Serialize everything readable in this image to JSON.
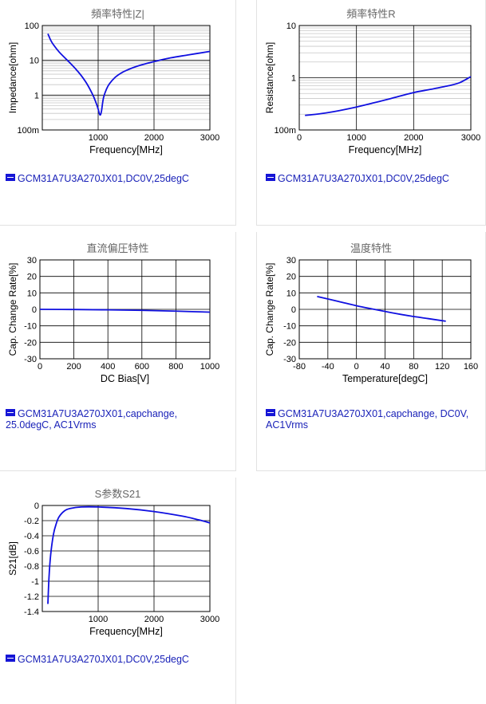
{
  "chart_data": [
    {
      "id": "impedance",
      "type": "line",
      "title": "頻率特性|Z|",
      "xlabel": "Frequency[MHz]",
      "ylabel": "Impedance[ohm]",
      "xlim": [
        0,
        3000
      ],
      "ylim": [
        0.1,
        100
      ],
      "yscale": "log",
      "grid": true,
      "xticks": [
        "1000",
        "2000",
        "3000"
      ],
      "yticks": [
        "100m",
        "1",
        "10",
        "100"
      ],
      "legend": "GCM31A7U3A270JX01,DC0V,25degC",
      "series": [
        {
          "name": "GCM31A7U3A270JX01,DC0V,25degC",
          "x": [
            100,
            150,
            200,
            300,
            400,
            500,
            600,
            700,
            800,
            900,
            950,
            1000,
            1020,
            1040,
            1060,
            1080,
            1100,
            1150,
            1200,
            1300,
            1400,
            1500,
            1700,
            2000,
            2300,
            2600,
            3000
          ],
          "y": [
            58,
            38,
            28,
            17.5,
            12,
            8.3,
            5.6,
            3.6,
            2.1,
            1.05,
            0.68,
            0.4,
            0.3,
            0.27,
            0.35,
            0.6,
            0.9,
            1.5,
            2.1,
            3.2,
            4.2,
            5.1,
            6.8,
            9.2,
            11.8,
            14.2,
            18
          ]
        }
      ]
    },
    {
      "id": "resistance",
      "type": "line",
      "title": "頻率特性R",
      "xlabel": "Frequency[MHz]",
      "ylabel": "Resistance[ohm]",
      "xlim": [
        0,
        3000
      ],
      "ylim": [
        0.1,
        10
      ],
      "yscale": "log",
      "grid": true,
      "xticks": [
        "0",
        "1000",
        "2000",
        "3000"
      ],
      "yticks": [
        "100m",
        "1",
        "10"
      ],
      "legend": "GCM31A7U3A270JX01,DC0V,25degC",
      "series": [
        {
          "name": "GCM31A7U3A270JX01,DC0V,25degC",
          "x": [
            100,
            300,
            500,
            700,
            1000,
            1300,
            1600,
            2000,
            2300,
            2600,
            2800,
            3000
          ],
          "y": [
            0.19,
            0.2,
            0.215,
            0.235,
            0.275,
            0.33,
            0.4,
            0.52,
            0.6,
            0.7,
            0.8,
            1.05
          ]
        }
      ]
    },
    {
      "id": "dcbias",
      "type": "line",
      "title": "直流偏圧特性",
      "xlabel": "DC Bias[V]",
      "ylabel": "Cap. Change Rate[%]",
      "xlim": [
        0,
        1000
      ],
      "ylim": [
        -30,
        30
      ],
      "grid": true,
      "xticks": [
        "0",
        "200",
        "400",
        "600",
        "800",
        "1000"
      ],
      "yticks": [
        "-30",
        "-20",
        "-10",
        "0",
        "10",
        "20",
        "30"
      ],
      "legend": "GCM31A7U3A270JX01,capchange, 25.0degC, AC1Vrms",
      "series": [
        {
          "name": "GCM31A7U3A270JX01,capchange, 25.0degC, AC1Vrms",
          "x": [
            0,
            200,
            400,
            600,
            800,
            1000
          ],
          "y": [
            0,
            -0.1,
            -0.3,
            -0.6,
            -1.1,
            -1.7
          ]
        }
      ]
    },
    {
      "id": "temperature",
      "type": "line",
      "title": "温度特性",
      "xlabel": "Temperature[degC]",
      "ylabel": "Cap. Change Rate[%]",
      "xlim": [
        -80,
        160
      ],
      "ylim": [
        -30,
        30
      ],
      "grid": true,
      "xticks": [
        "-80",
        "-40",
        "0",
        "40",
        "80",
        "120",
        "160"
      ],
      "yticks": [
        "-30",
        "-20",
        "-10",
        "0",
        "10",
        "20",
        "30"
      ],
      "legend": "GCM31A7U3A270JX01,capchange, DC0V, AC1Vrms",
      "series": [
        {
          "name": "GCM31A7U3A270JX01,capchange, DC0V, AC1Vrms",
          "x": [
            -55,
            -25,
            0,
            25,
            50,
            75,
            100,
            125
          ],
          "y": [
            7.8,
            4.8,
            2.2,
            0,
            -2.1,
            -4,
            -5.6,
            -7.2
          ]
        }
      ]
    },
    {
      "id": "s21",
      "type": "line",
      "title": "S参数S21",
      "xlabel": "Frequency[MHz]",
      "ylabel": "S21[dB]",
      "xlim": [
        0,
        3000
      ],
      "ylim": [
        -1.4,
        0
      ],
      "grid": true,
      "xticks": [
        "1000",
        "2000",
        "3000"
      ],
      "yticks": [
        "-1.4",
        "-1.2",
        "-1",
        "-0.8",
        "-0.6",
        "-0.4",
        "-0.2",
        "0"
      ],
      "legend": "GCM31A7U3A270JX01,DC0V,25degC",
      "series": [
        {
          "name": "GCM31A7U3A270JX01,DC0V,25degC",
          "x": [
            100,
            120,
            150,
            200,
            250,
            300,
            400,
            500,
            700,
            1000,
            1500,
            2000,
            2500,
            2800,
            3000
          ],
          "y": [
            -1.3,
            -0.95,
            -0.65,
            -0.38,
            -0.24,
            -0.15,
            -0.07,
            -0.04,
            -0.02,
            -0.02,
            -0.04,
            -0.08,
            -0.14,
            -0.19,
            -0.23
          ]
        }
      ]
    }
  ],
  "colors": {
    "line": "#1010e0",
    "axis": "#000000",
    "major_grid": "#000000",
    "minor_grid": "#c8c8c8",
    "legend_text": "#1a22b8"
  }
}
